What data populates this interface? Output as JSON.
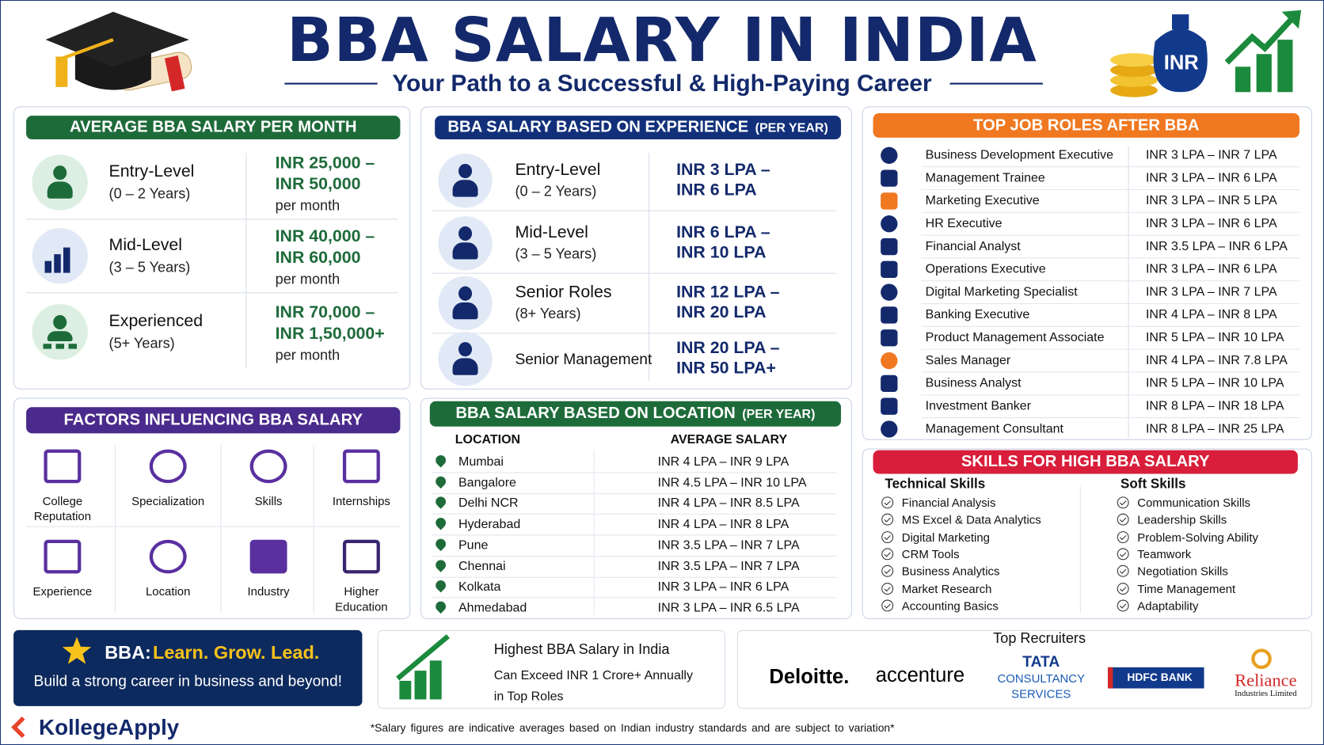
{
  "header": {
    "title": "BBA SALARY IN INDIA",
    "subtitle": "Your Path to a Successful & High-Paying Career",
    "badge": "INR"
  },
  "monthly": {
    "title": "AVERAGE BBA SALARY PER MONTH",
    "rows": [
      {
        "level": "Entry-Level",
        "years": "(0 – 2 Years)",
        "salary": "INR 25,000 – INR 50,000",
        "unit": "per month"
      },
      {
        "level": "Mid-Level",
        "years": "(3 – 5 Years)",
        "salary": "INR 40,000 – INR 60,000",
        "unit": "per month"
      },
      {
        "level": "Experienced",
        "years": "(5+ Years)",
        "salary": "INR 70,000 – INR 1,50,000+",
        "unit": "per month"
      }
    ]
  },
  "experience": {
    "title": "BBA SALARY BASED ON EXPERIENCE",
    "note": "(PER YEAR)",
    "rows": [
      {
        "level": "Entry-Level",
        "years": "(0 – 2 Years)",
        "salary": "INR 3 LPA – INR 6 LPA"
      },
      {
        "level": "Mid-Level",
        "years": "(3 – 5 Years)",
        "salary": "INR 6 LPA – INR 10 LPA"
      },
      {
        "level": "Senior Roles",
        "years": "(8+ Years)",
        "salary": "INR 12 LPA – INR 20 LPA"
      },
      {
        "level": "Senior Management",
        "salary": "INR 20 LPA – INR 50 LPA+"
      }
    ]
  },
  "roles": {
    "title": "TOP JOB ROLES AFTER BBA",
    "rows": [
      [
        "Business Development Executive",
        "INR 3 LPA – INR 7 LPA"
      ],
      [
        "Management Trainee",
        "INR 3 LPA – INR 6 LPA"
      ],
      [
        "Marketing Executive",
        "INR 3 LPA – INR 5 LPA"
      ],
      [
        "HR Executive",
        "INR 3 LPA – INR 6 LPA"
      ],
      [
        "Financial Analyst",
        "INR 3.5 LPA – INR 6 LPA"
      ],
      [
        "Operations Executive",
        "INR 3 LPA – INR 6 LPA"
      ],
      [
        "Digital Marketing Specialist",
        "INR 3 LPA – INR 7 LPA"
      ],
      [
        "Banking Executive",
        "INR 4 LPA – INR 8 LPA"
      ],
      [
        "Product Management Associate",
        "INR 5 LPA – INR 10 LPA"
      ],
      [
        "Sales Manager",
        "INR 4 LPA – INR 7.8 LPA"
      ],
      [
        "Business Analyst",
        "INR 5 LPA – INR 10 LPA"
      ],
      [
        "Investment Banker",
        "INR 8 LPA – INR 18 LPA"
      ],
      [
        "Management Consultant",
        "INR 8 LPA – INR 25 LPA"
      ]
    ]
  },
  "factors": {
    "title": "FACTORS INFLUENCING BBA SALARY",
    "items": [
      "College Reputation",
      "Specialization",
      "Skills",
      "Internships",
      "Experience",
      "Location",
      "Industry",
      "Higher Education"
    ]
  },
  "location": {
    "title": "BBA SALARY BASED ON LOCATION",
    "note": "(PER YEAR)",
    "headers": [
      "LOCATION",
      "AVERAGE SALARY"
    ],
    "rows": [
      [
        "Mumbai",
        "INR 4 LPA – INR 9 LPA"
      ],
      [
        "Bangalore",
        "INR 4.5 LPA – INR 10 LPA"
      ],
      [
        "Delhi NCR",
        "INR 4 LPA – INR 8.5 LPA"
      ],
      [
        "Hyderabad",
        "INR 4 LPA – INR 8 LPA"
      ],
      [
        "Pune",
        "INR 3.5 LPA – INR 7 LPA"
      ],
      [
        "Chennai",
        "INR 3.5 LPA – INR 7 LPA"
      ],
      [
        "Kolkata",
        "INR 3 LPA – INR 6 LPA"
      ],
      [
        "Ahmedabad",
        "INR 3 LPA – INR 6.5 LPA"
      ]
    ]
  },
  "skills": {
    "title": "SKILLS FOR HIGH BBA SALARY",
    "technical": {
      "heading": "Technical Skills",
      "items": [
        "Financial Analysis",
        "MS Excel & Data Analytics",
        "Digital Marketing",
        "CRM Tools",
        "Business Analytics",
        "Market Research",
        "Accounting Basics"
      ]
    },
    "soft": {
      "heading": "Soft Skills",
      "items": [
        "Communication Skills",
        "Leadership Skills",
        "Problem-Solving Ability",
        "Teamwork",
        "Negotiation Skills",
        "Time Management",
        "Adaptability"
      ]
    }
  },
  "banner": {
    "prefix": "BBA:",
    "motto": "Learn. Grow. Lead.",
    "tagline": "Build a strong career in business and beyond!"
  },
  "highest": {
    "title": "Highest BBA Salary in India",
    "text": "Can Exceed INR 1 Crore+ Annually in Top Roles"
  },
  "recruiters": {
    "title": "Top Recruiters",
    "logos": [
      {
        "name": "Deloitte."
      },
      {
        "name": "accenture"
      },
      {
        "name": "TATA",
        "sub": "CONSULTANCY SERVICES"
      },
      {
        "name": "HDFC BANK"
      },
      {
        "name": "Reliance",
        "sub": "Industries Limited"
      }
    ]
  },
  "footer": {
    "brand": "KollegeApply",
    "disclaimer": "*Salary figures are indicative averages based on Indian industry standards and are subject to variation*"
  }
}
